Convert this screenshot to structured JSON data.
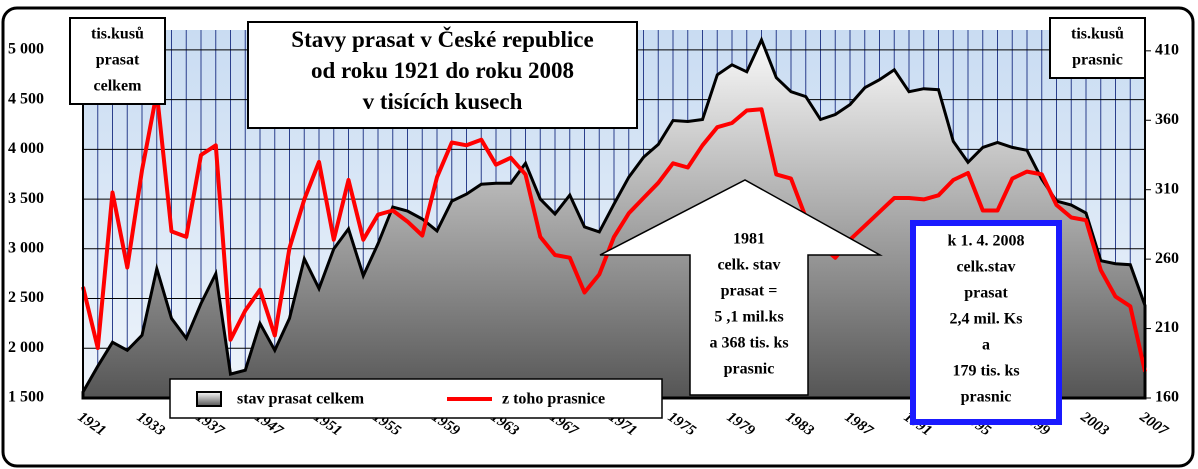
{
  "chart_data": {
    "type": "area_line",
    "title": [
      "Stavy prasat v České republice",
      "od roku 1921 do roku 2008",
      "v tisících kusech"
    ],
    "y_axis_label": [
      "tis.kusů",
      "prasat",
      "celkem"
    ],
    "y2_axis_label": [
      "tis.kusů",
      "prasnic"
    ],
    "categories": [
      "1921",
      null,
      null,
      null,
      "1933",
      null,
      null,
      null,
      "1937",
      null,
      null,
      null,
      "1947",
      null,
      null,
      null,
      "1951",
      null,
      null,
      null,
      "1955",
      null,
      null,
      null,
      "1959",
      null,
      null,
      null,
      "1963",
      null,
      null,
      null,
      "1967",
      null,
      null,
      null,
      "1971",
      null,
      null,
      null,
      "1975",
      null,
      null,
      null,
      "1979",
      null,
      null,
      null,
      "1983",
      null,
      null,
      null,
      "1987",
      null,
      null,
      null,
      "1991",
      null,
      null,
      null,
      "1995",
      null,
      null,
      null,
      "1999",
      null,
      null,
      null,
      "2003",
      null,
      null,
      null,
      "2007"
    ],
    "series": [
      {
        "name": "stav prasat celkem",
        "color": "#808080",
        "axis": "y",
        "values": [
          1560,
          1820,
          2060,
          1980,
          2130,
          2800,
          2300,
          2100,
          2450,
          2750,
          1740,
          1780,
          2250,
          1980,
          2300,
          2900,
          2600,
          3000,
          3200,
          2730,
          3050,
          3420,
          3380,
          3300,
          3180,
          3480,
          3550,
          3650,
          3660,
          3660,
          3860,
          3500,
          3350,
          3540,
          3220,
          3170,
          3450,
          3720,
          3920,
          4050,
          4290,
          4280,
          4300,
          4750,
          4850,
          4780,
          5100,
          4720,
          4580,
          4530,
          4300,
          4350,
          4450,
          4620,
          4700,
          4800,
          4580,
          4610,
          4600,
          4080,
          3870,
          4020,
          4070,
          4020,
          3990,
          3700,
          3480,
          3440,
          3360,
          2880,
          2850,
          2840,
          2430
        ]
      },
      {
        "name": "z toho prasnice",
        "color": "#ff0000",
        "axis": "y2",
        "values": [
          240,
          196,
          308,
          254,
          324,
          380,
          280,
          276,
          335,
          342,
          202,
          223,
          238,
          205,
          268,
          303,
          330,
          274,
          317,
          274,
          292,
          295,
          287,
          277,
          319,
          344,
          342,
          346,
          328,
          333,
          321,
          276,
          263,
          261,
          236,
          249,
          276,
          293,
          304,
          315,
          329,
          326,
          342,
          355,
          358,
          367,
          368,
          321,
          318,
          290,
          270,
          261,
          274,
          284,
          294,
          304,
          304,
          303,
          306,
          317,
          322,
          295,
          295,
          318,
          323,
          321,
          299,
          290,
          288,
          252,
          233,
          226,
          179
        ]
      }
    ],
    "ylim": [
      1500,
      5200
    ],
    "yticks": [
      {
        "value": 1500,
        "label": "1 500"
      },
      {
        "value": 2000,
        "label": "2 000"
      },
      {
        "value": 2500,
        "label": "2 500"
      },
      {
        "value": 3000,
        "label": "3 000"
      },
      {
        "value": 3500,
        "label": "3 500"
      },
      {
        "value": 4000,
        "label": "4 000"
      },
      {
        "value": 4500,
        "label": "4 500"
      },
      {
        "value": 5000,
        "label": "5 000"
      }
    ],
    "y2lim": [
      160,
      425
    ],
    "y2ticks": [
      160,
      210,
      260,
      310,
      360,
      410
    ],
    "grid": true,
    "annotations": [
      {
        "lines": [
          "1981",
          "celk. stav",
          "prasat =",
          "5 ,1 mil.ks",
          "a 368 tis. ks",
          "prasnic"
        ]
      },
      {
        "lines": [
          "k 1. 4. 2008",
          "celk.stav",
          "prasat",
          "2,4 mil. Ks",
          "a",
          "179 tis. ks",
          "prasnic"
        ]
      }
    ]
  }
}
